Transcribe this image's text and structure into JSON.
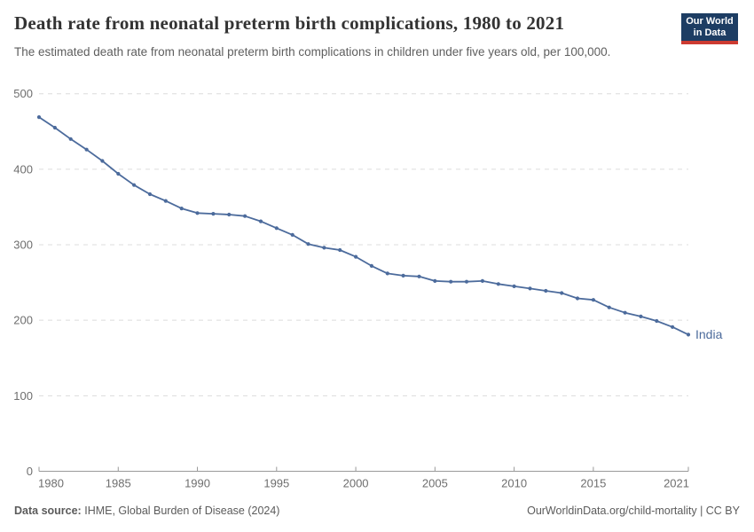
{
  "header": {
    "title": "Death rate from neonatal preterm birth complications, 1980 to 2021",
    "subtitle": "The estimated death rate from neonatal preterm birth complications in children under five years old, per 100,000.",
    "logo": {
      "line1": "Our World",
      "line2": "in Data"
    }
  },
  "footer": {
    "data_source_label": "Data source:",
    "data_source_value": "IHME, Global Burden of Disease (2024)",
    "attribution": "OurWorldinData.org/child-mortality | CC BY"
  },
  "colors": {
    "line": "#4C6B9C",
    "series_label": "#4C6B9C",
    "grid": "#DCDCDC",
    "axis": "#999999",
    "tick_label": "#6E6E6E",
    "logo_bg": "#1D3D63",
    "logo_accent": "#CC3B31"
  },
  "chart_data": {
    "type": "line",
    "title": "Death rate from neonatal preterm birth complications, 1980 to 2021",
    "subtitle": "The estimated death rate from neonatal preterm birth complications in children under five years old, per 100,000.",
    "xlabel": "",
    "ylabel": "",
    "xlim": [
      1980,
      2021
    ],
    "ylim": [
      0,
      500
    ],
    "x_ticks": [
      1980,
      1985,
      1990,
      1995,
      2000,
      2005,
      2010,
      2015,
      2021
    ],
    "y_ticks": [
      0,
      100,
      200,
      300,
      400,
      500
    ],
    "grid": "horizontal-dashed",
    "legend_position": "end-of-line",
    "x": [
      1980,
      1981,
      1982,
      1983,
      1984,
      1985,
      1986,
      1987,
      1988,
      1989,
      1990,
      1991,
      1992,
      1993,
      1994,
      1995,
      1996,
      1997,
      1998,
      1999,
      2000,
      2001,
      2002,
      2003,
      2004,
      2005,
      2006,
      2007,
      2008,
      2009,
      2010,
      2011,
      2012,
      2013,
      2014,
      2015,
      2016,
      2017,
      2018,
      2019,
      2020,
      2021
    ],
    "series": [
      {
        "name": "India",
        "color": "#4C6B9C",
        "values": [
          469,
          455,
          440,
          426,
          411,
          394,
          379,
          367,
          358,
          348,
          342,
          341,
          340,
          338,
          331,
          322,
          313,
          301,
          296,
          293,
          284,
          272,
          262,
          259,
          258,
          252,
          251,
          251,
          252,
          248,
          245,
          242,
          239,
          236,
          229,
          227,
          217,
          210,
          205,
          199,
          191,
          181
        ]
      }
    ]
  }
}
